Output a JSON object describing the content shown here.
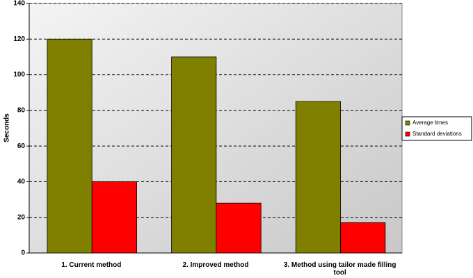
{
  "chart_data": {
    "type": "bar",
    "y_label": "Seconds",
    "categories": [
      "1. Current method",
      "2. Improved method",
      "3. Method using tailor made filling tool"
    ],
    "series": [
      {
        "name": "Average times",
        "color": "#808000",
        "values": [
          120,
          110,
          85
        ]
      },
      {
        "name": "Standard deviations",
        "color": "#ff0000",
        "values": [
          40,
          28,
          17
        ]
      }
    ],
    "ylim": [
      0,
      140
    ],
    "yticks": [
      0,
      20,
      40,
      60,
      80,
      100,
      120,
      140
    ],
    "grid": true,
    "legend": "right"
  }
}
